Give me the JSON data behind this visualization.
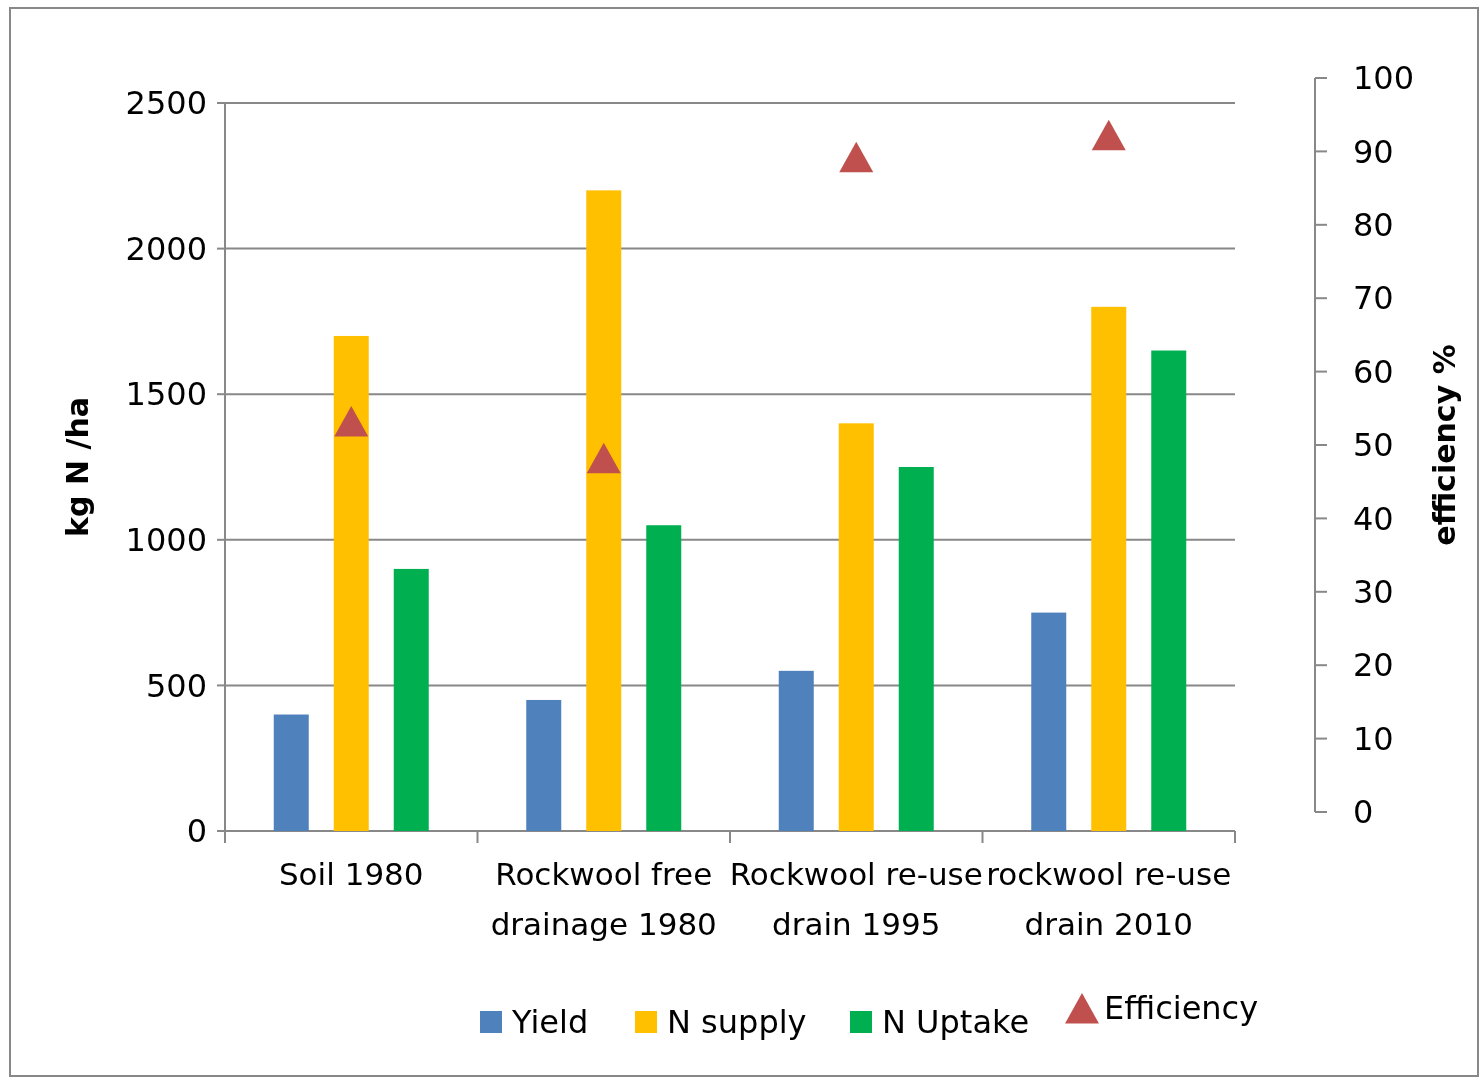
{
  "chart_data": {
    "type": "bar",
    "ylabel": "kg N /ha",
    "y2label": "efficiency %",
    "categories": [
      "Soil 1980",
      "Rockwool free drainage 1980",
      "Rockwool re-use drain 1995",
      "rockwool re-use drain 2010"
    ],
    "series": [
      {
        "name": "Yield",
        "color": "#4f81bd",
        "values": [
          400,
          450,
          550,
          750
        ]
      },
      {
        "name": "N supply",
        "color": "#ffc000",
        "values": [
          1700,
          2200,
          1400,
          1800
        ]
      },
      {
        "name": "N Uptake",
        "color": "#00b050",
        "values": [
          900,
          1050,
          1250,
          1650
        ]
      },
      {
        "name": "Efficiency",
        "type": "scatter",
        "axis": "y2",
        "marker": "triangle",
        "color": "#c0504d",
        "values": [
          53,
          48,
          89,
          92
        ]
      }
    ],
    "ylim": [
      0,
      2500
    ],
    "yticks": [
      0,
      500,
      1000,
      1500,
      2000,
      2500
    ],
    "y2lim": [
      0,
      100
    ],
    "y2ticks": [
      0,
      10,
      20,
      30,
      40,
      50,
      60,
      70,
      80,
      90,
      100
    ],
    "grid": "y",
    "legend": "bottom"
  }
}
